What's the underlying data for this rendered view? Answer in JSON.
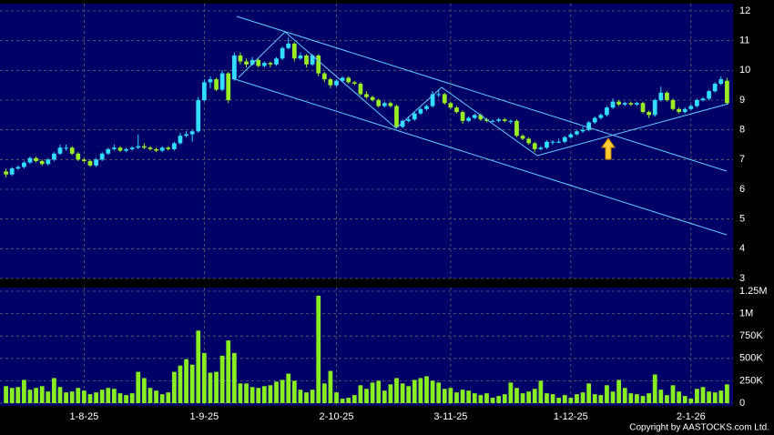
{
  "chart_data": {
    "type": "candlestick",
    "xlim": [
      -1,
      121
    ],
    "xticks": [
      {
        "value": 13,
        "label": "1-8-25"
      },
      {
        "value": 33,
        "label": "1-9-25"
      },
      {
        "value": 55,
        "label": "2-10-25"
      },
      {
        "value": 74,
        "label": "3-11-25"
      },
      {
        "value": 94,
        "label": "1-12-25"
      },
      {
        "value": 114,
        "label": "2-1-26"
      }
    ],
    "ylim": [
      3,
      12
    ],
    "yticks": [
      3,
      4,
      5,
      6,
      7,
      8,
      9,
      10,
      11,
      12
    ],
    "volume_ylim": [
      0,
      1250000
    ],
    "volume_yticks": [
      0,
      {
        "value": 250000,
        "label": "250K"
      },
      {
        "value": 500000,
        "label": "500K"
      },
      {
        "value": 750000,
        "label": "750K"
      },
      {
        "value": 1000000,
        "label": "1M"
      },
      {
        "value": 1250000,
        "label": "1.25M"
      }
    ],
    "grid": true,
    "up_color": "#33ddff",
    "down_color": "#99ee22",
    "volume_color": "#88ee22",
    "copyright": "Copyright by AASTOCKS.com Ltd.",
    "ohlc": [
      [
        6.6,
        6.7,
        6.4,
        6.5
      ],
      [
        6.5,
        6.75,
        6.45,
        6.7
      ],
      [
        6.7,
        6.8,
        6.65,
        6.75
      ],
      [
        6.75,
        6.95,
        6.7,
        6.9
      ],
      [
        6.9,
        7.1,
        6.85,
        7.05
      ],
      [
        7.05,
        7.1,
        6.9,
        6.95
      ],
      [
        6.95,
        7.0,
        6.8,
        6.85
      ],
      [
        6.85,
        7.05,
        6.8,
        7.0
      ],
      [
        7.0,
        7.25,
        6.95,
        7.2
      ],
      [
        7.2,
        7.5,
        7.15,
        7.4
      ],
      [
        7.4,
        7.5,
        7.3,
        7.4
      ],
      [
        7.4,
        7.45,
        7.15,
        7.2
      ],
      [
        7.2,
        7.25,
        6.95,
        7.0
      ],
      [
        7.0,
        7.05,
        6.9,
        6.95
      ],
      [
        6.95,
        7.0,
        6.75,
        6.8
      ],
      [
        6.8,
        7.05,
        6.75,
        7.0
      ],
      [
        7.0,
        7.25,
        6.95,
        7.2
      ],
      [
        7.2,
        7.4,
        7.15,
        7.35
      ],
      [
        7.35,
        7.5,
        7.3,
        7.4
      ],
      [
        7.4,
        7.45,
        7.25,
        7.3
      ],
      [
        7.3,
        7.4,
        7.25,
        7.35
      ],
      [
        7.35,
        7.45,
        7.3,
        7.4
      ],
      [
        7.4,
        7.85,
        7.35,
        7.45
      ],
      [
        7.45,
        7.55,
        7.35,
        7.4
      ],
      [
        7.4,
        7.45,
        7.3,
        7.35
      ],
      [
        7.35,
        7.4,
        7.25,
        7.3
      ],
      [
        7.3,
        7.45,
        7.25,
        7.4
      ],
      [
        7.4,
        7.45,
        7.3,
        7.35
      ],
      [
        7.35,
        7.6,
        7.3,
        7.55
      ],
      [
        7.55,
        7.9,
        7.5,
        7.8
      ],
      [
        7.8,
        7.95,
        7.75,
        7.85
      ],
      [
        7.85,
        8.0,
        7.6,
        7.95
      ],
      [
        7.95,
        9.1,
        7.9,
        9.0
      ],
      [
        9.0,
        9.7,
        8.95,
        9.6
      ],
      [
        9.6,
        9.8,
        9.4,
        9.7
      ],
      [
        9.7,
        9.75,
        9.3,
        9.35
      ],
      [
        9.35,
        10.0,
        9.3,
        9.9
      ],
      [
        9.9,
        9.95,
        8.9,
        9.0
      ],
      [
        9.7,
        10.6,
        9.65,
        10.5
      ],
      [
        10.5,
        10.6,
        10.2,
        10.3
      ],
      [
        10.3,
        10.4,
        10.1,
        10.2
      ],
      [
        10.2,
        10.45,
        10.15,
        10.35
      ],
      [
        10.35,
        10.4,
        10.1,
        10.15
      ],
      [
        10.15,
        10.3,
        10.1,
        10.25
      ],
      [
        10.25,
        10.3,
        10.1,
        10.2
      ],
      [
        10.2,
        10.45,
        10.15,
        10.4
      ],
      [
        10.4,
        10.8,
        10.35,
        10.75
      ],
      [
        10.75,
        11.1,
        10.7,
        10.9
      ],
      [
        10.9,
        10.95,
        10.3,
        10.4
      ],
      [
        10.4,
        10.6,
        10.35,
        10.5
      ],
      [
        10.5,
        10.55,
        10.1,
        10.2
      ],
      [
        10.2,
        10.55,
        10.15,
        10.5
      ],
      [
        10.5,
        10.55,
        9.8,
        9.9
      ],
      [
        9.9,
        9.95,
        9.6,
        9.7
      ],
      [
        9.7,
        9.75,
        9.4,
        9.5
      ],
      [
        9.5,
        9.7,
        9.45,
        9.65
      ],
      [
        9.65,
        9.8,
        9.6,
        9.75
      ],
      [
        9.75,
        9.8,
        9.55,
        9.6
      ],
      [
        9.6,
        9.65,
        9.5,
        9.55
      ],
      [
        9.55,
        9.6,
        9.15,
        9.2
      ],
      [
        9.2,
        9.3,
        9.05,
        9.1
      ],
      [
        9.1,
        9.15,
        8.95,
        9.0
      ],
      [
        9.0,
        9.05,
        8.75,
        8.8
      ],
      [
        8.8,
        8.95,
        8.75,
        8.9
      ],
      [
        8.9,
        8.95,
        8.75,
        8.8
      ],
      [
        8.8,
        8.85,
        8.05,
        8.1
      ],
      [
        8.1,
        8.35,
        8.05,
        8.3
      ],
      [
        8.3,
        8.45,
        8.25,
        8.35
      ],
      [
        8.35,
        8.6,
        8.3,
        8.55
      ],
      [
        8.55,
        8.75,
        8.5,
        8.7
      ],
      [
        8.7,
        8.85,
        8.65,
        8.8
      ],
      [
        8.8,
        9.3,
        8.75,
        9.2
      ],
      [
        9.2,
        9.35,
        9.1,
        9.2
      ],
      [
        9.2,
        9.25,
        8.85,
        8.9
      ],
      [
        8.9,
        8.95,
        8.7,
        8.75
      ],
      [
        8.75,
        8.8,
        8.55,
        8.6
      ],
      [
        8.6,
        8.65,
        8.2,
        8.3
      ],
      [
        8.3,
        8.45,
        8.25,
        8.4
      ],
      [
        8.4,
        8.55,
        8.35,
        8.5
      ],
      [
        8.5,
        8.55,
        8.3,
        8.35
      ],
      [
        8.35,
        8.4,
        8.25,
        8.3
      ],
      [
        8.3,
        8.35,
        8.25,
        8.3
      ],
      [
        8.3,
        8.4,
        8.25,
        8.35
      ],
      [
        8.35,
        8.4,
        8.25,
        8.3
      ],
      [
        8.3,
        8.35,
        8.2,
        8.3
      ],
      [
        8.3,
        8.35,
        7.75,
        7.8
      ],
      [
        7.8,
        7.85,
        7.65,
        7.7
      ],
      [
        7.7,
        7.75,
        7.5,
        7.55
      ],
      [
        7.55,
        7.6,
        7.25,
        7.35
      ],
      [
        7.35,
        7.45,
        7.3,
        7.4
      ],
      [
        7.4,
        7.65,
        7.35,
        7.6
      ],
      [
        7.6,
        7.65,
        7.5,
        7.6
      ],
      [
        7.6,
        7.7,
        7.55,
        7.6
      ],
      [
        7.6,
        7.8,
        7.55,
        7.75
      ],
      [
        7.75,
        7.9,
        7.7,
        7.85
      ],
      [
        7.85,
        8.0,
        7.8,
        7.95
      ],
      [
        7.95,
        8.1,
        7.9,
        8.0
      ],
      [
        8.0,
        8.3,
        7.95,
        8.25
      ],
      [
        8.25,
        8.45,
        8.2,
        8.4
      ],
      [
        8.4,
        8.55,
        8.35,
        8.5
      ],
      [
        8.5,
        8.8,
        8.45,
        8.75
      ],
      [
        8.75,
        9.05,
        8.7,
        8.95
      ],
      [
        8.95,
        9.0,
        8.8,
        8.85
      ],
      [
        8.85,
        8.95,
        8.8,
        8.9
      ],
      [
        8.9,
        8.95,
        8.8,
        8.85
      ],
      [
        8.85,
        8.95,
        8.8,
        8.9
      ],
      [
        8.9,
        8.95,
        8.55,
        8.6
      ],
      [
        8.6,
        8.65,
        8.4,
        8.5
      ],
      [
        8.5,
        9.05,
        8.45,
        9.0
      ],
      [
        9.0,
        9.45,
        8.95,
        9.25
      ],
      [
        9.25,
        9.3,
        8.95,
        9.0
      ],
      [
        9.0,
        9.05,
        8.65,
        8.7
      ],
      [
        8.7,
        8.75,
        8.55,
        8.6
      ],
      [
        8.6,
        8.75,
        8.55,
        8.7
      ],
      [
        8.7,
        8.85,
        8.65,
        8.8
      ],
      [
        8.8,
        9.05,
        8.75,
        9.0
      ],
      [
        9.0,
        9.1,
        8.95,
        9.05
      ],
      [
        9.05,
        9.35,
        9.0,
        9.3
      ],
      [
        9.3,
        9.6,
        9.25,
        9.55
      ],
      [
        9.55,
        9.8,
        9.5,
        9.7
      ],
      [
        9.65,
        9.75,
        8.85,
        8.9
      ]
    ],
    "volume": [
      190000,
      170000,
      180000,
      260000,
      150000,
      170000,
      190000,
      130000,
      280000,
      180000,
      120000,
      130000,
      170000,
      140000,
      100000,
      120000,
      150000,
      170000,
      160000,
      110000,
      90000,
      110000,
      350000,
      280000,
      170000,
      140000,
      100000,
      120000,
      350000,
      420000,
      490000,
      430000,
      810000,
      560000,
      340000,
      350000,
      530000,
      700000,
      560000,
      220000,
      220000,
      180000,
      170000,
      190000,
      200000,
      240000,
      260000,
      330000,
      250000,
      150000,
      120000,
      150000,
      1200000,
      220000,
      360000,
      120000,
      50000,
      60000,
      90000,
      200000,
      160000,
      230000,
      250000,
      140000,
      210000,
      280000,
      220000,
      190000,
      260000,
      280000,
      300000,
      250000,
      230000,
      160000,
      170000,
      120000,
      150000,
      140000,
      110000,
      90000,
      110000,
      60000,
      80000,
      100000,
      230000,
      170000,
      110000,
      130000,
      160000,
      250000,
      110000,
      100000,
      60000,
      90000,
      60000,
      100000,
      120000,
      220000,
      100000,
      90000,
      200000,
      130000,
      260000,
      170000,
      110000,
      100000,
      80000,
      110000,
      320000,
      150000,
      90000,
      200000,
      130000,
      80000,
      50000,
      160000,
      180000,
      130000,
      120000,
      140000,
      210000
    ]
  }
}
